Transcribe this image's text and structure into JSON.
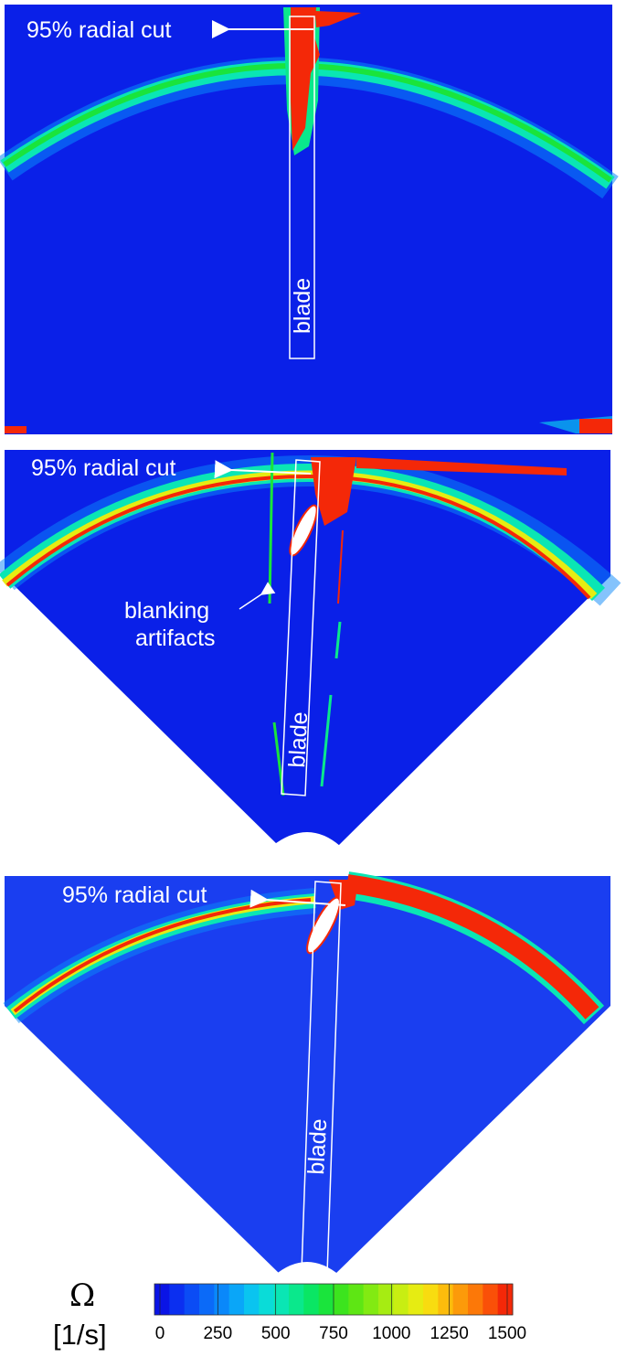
{
  "panels": [
    {
      "cut_label": "95% radial cut",
      "blade_label": "blade"
    },
    {
      "cut_label": "95% radial cut",
      "blade_label": "blade",
      "artifact_label_line1": "blanking",
      "artifact_label_line2": "artifacts"
    },
    {
      "cut_label": "95% radial cut",
      "blade_label": "blade"
    }
  ],
  "colorbar": {
    "symbol": "Ω",
    "unit": "[1/s]",
    "ticks": [
      "0",
      "250",
      "500",
      "750",
      "1000",
      "1250",
      "1500"
    ],
    "colors": [
      "#0a14e6",
      "#0b2ff0",
      "#0b4cf5",
      "#0b6af8",
      "#0a88fa",
      "#0aa6f8",
      "#0ac4f0",
      "#0adcd8",
      "#0ae6b4",
      "#0ae88c",
      "#0ae664",
      "#1ae43c",
      "#3ce41e",
      "#5ee614",
      "#82ea12",
      "#a6ec12",
      "#c8ee12",
      "#e6ec12",
      "#f8dc10",
      "#fcbc0c",
      "#fc9a0a",
      "#fc7808",
      "#fa5008",
      "#f42808"
    ]
  }
}
